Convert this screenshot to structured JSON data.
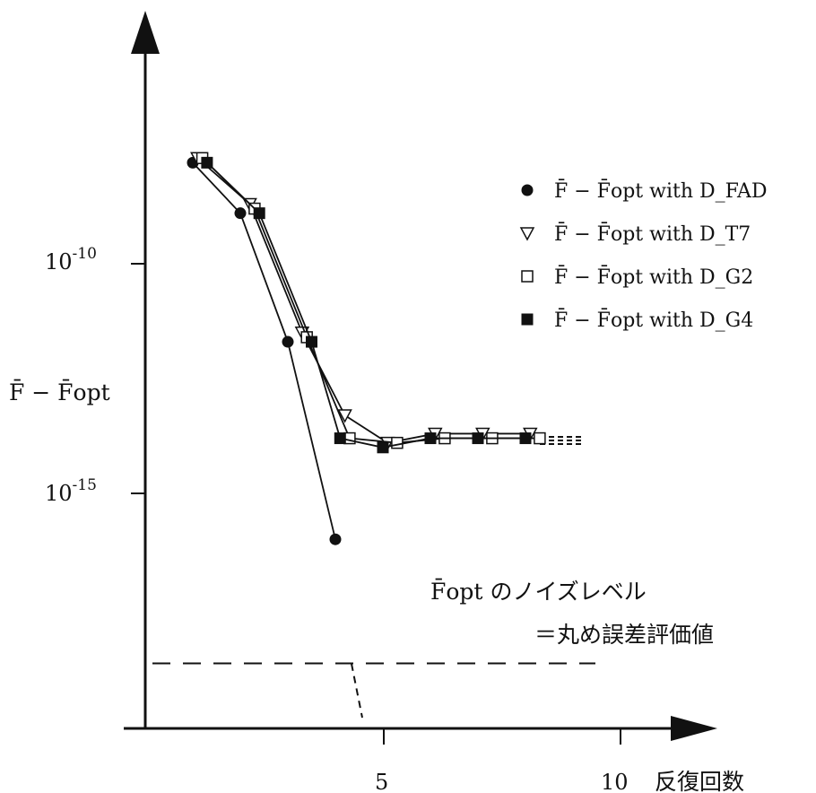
{
  "chart_data": {
    "type": "line",
    "xlabel": "反復回数",
    "ylabel": "F̄ − F̄opt",
    "log_y": true,
    "xlim": [
      0,
      11
    ],
    "ylim_exp": [
      -20,
      -7
    ],
    "x_ticks": [
      {
        "value": 5,
        "label": "5"
      },
      {
        "value": 10,
        "label": "10"
      }
    ],
    "y_ticks": [
      {
        "exp": -10,
        "label_base": "10",
        "label_exp": "-10"
      },
      {
        "exp": -15,
        "label_base": "10",
        "label_exp": "-15"
      }
    ],
    "series": [
      {
        "name": "F̄ − F̄opt with D_FAD",
        "marker": "circle-filled",
        "points": [
          [
            1,
            -7.8
          ],
          [
            2,
            -8.9
          ],
          [
            3,
            -11.7
          ],
          [
            4,
            -16.0
          ]
        ]
      },
      {
        "name": "F̄ − F̄opt with D_T7",
        "marker": "triangle-down-open",
        "points": [
          [
            1.1,
            -7.7
          ],
          [
            2.2,
            -8.7
          ],
          [
            3.3,
            -11.5
          ],
          [
            4.2,
            -13.3
          ],
          [
            5.1,
            -13.9
          ],
          [
            6.1,
            -13.7
          ],
          [
            7.1,
            -13.7
          ],
          [
            8.1,
            -13.7
          ]
        ]
      },
      {
        "name": "F̄ − F̄opt with D_G2",
        "marker": "square-open",
        "points": [
          [
            1.2,
            -7.7
          ],
          [
            2.3,
            -8.8
          ],
          [
            3.4,
            -11.6
          ],
          [
            4.3,
            -13.8
          ],
          [
            5.3,
            -13.9
          ],
          [
            6.3,
            -13.8
          ],
          [
            7.3,
            -13.8
          ],
          [
            8.3,
            -13.8
          ]
        ]
      },
      {
        "name": "F̄ − F̄opt with D_G4",
        "marker": "square-filled",
        "points": [
          [
            1.3,
            -7.8
          ],
          [
            2.4,
            -8.9
          ],
          [
            3.5,
            -11.7
          ],
          [
            4.1,
            -13.8
          ],
          [
            5.0,
            -14.0
          ],
          [
            6.0,
            -13.8
          ],
          [
            7.0,
            -13.8
          ],
          [
            8.0,
            -13.8
          ]
        ]
      }
    ],
    "noise_level_exp": -18.7,
    "legend_position": "right",
    "annotation_line1_main": "F̄opt",
    "annotation_line1_rest": "のノイズレベル",
    "annotation_line2": "＝丸め誤差評価値"
  }
}
